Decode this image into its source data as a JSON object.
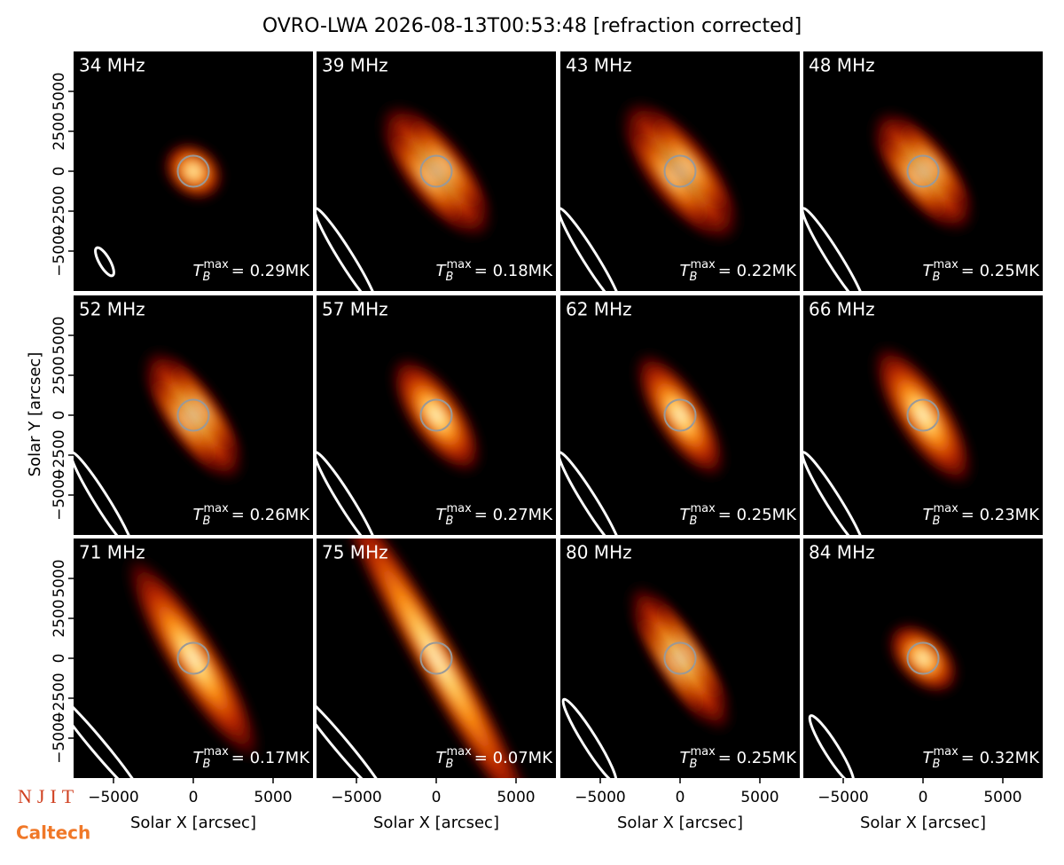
{
  "chart_data": {
    "type": "image_grid",
    "title": "OVRO-LWA 2026-08-13T00:53:48 [refraction corrected]",
    "xlabel": "Solar X [arcsec]",
    "ylabel": "Solar Y [arcsec]",
    "xlim": [
      -7500,
      7500
    ],
    "ylim": [
      -7500,
      7500
    ],
    "xticks": [
      {
        "value": -5000,
        "label": "−5000"
      },
      0,
      5000
    ],
    "yticks": [
      {
        "value": -5000,
        "label": "−5000"
      },
      {
        "value": -2500,
        "label": "−2500"
      },
      0,
      2500,
      5000
    ],
    "tb_symbol": {
      "base": "T",
      "sub": "B",
      "sup": "max"
    },
    "panels": [
      {
        "label": "34 MHz",
        "tb_label": "= 0.29MK"
      },
      {
        "label": "39 MHz",
        "tb_label": "= 0.18MK"
      },
      {
        "label": "43 MHz",
        "tb_label": "= 0.22MK"
      },
      {
        "label": "48 MHz",
        "tb_label": "= 0.25MK"
      },
      {
        "label": "52 MHz",
        "tb_label": "= 0.26MK"
      },
      {
        "label": "57 MHz",
        "tb_label": "= 0.27MK"
      },
      {
        "label": "62 MHz",
        "tb_label": "= 0.25MK"
      },
      {
        "label": "66 MHz",
        "tb_label": "= 0.23MK"
      },
      {
        "label": "71 MHz",
        "tb_label": "= 0.17MK"
      },
      {
        "label": "75 MHz",
        "tb_label": "= 0.07MK"
      },
      {
        "label": "80 MHz",
        "tb_label": "= 0.25MK"
      },
      {
        "label": "84 MHz",
        "tb_label": "= 0.32MK"
      }
    ],
    "logos": {
      "top": "NJIT",
      "bottom": "Caltech"
    }
  }
}
